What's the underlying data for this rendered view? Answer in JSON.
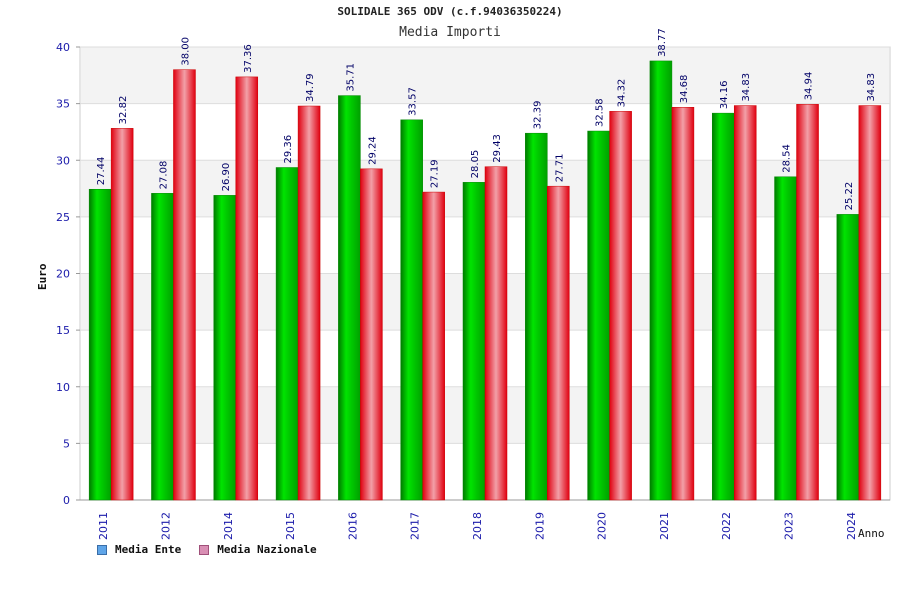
{
  "chart_title": "SOLIDALE 365 ODV (c.f.94036350224)",
  "chart_subtitle": "Media Importi",
  "chart_data": {
    "type": "bar",
    "title": "Media Importi",
    "xlabel": "Anno",
    "ylabel": "Euro",
    "ylim": [
      0,
      40
    ],
    "yticks": [
      0,
      5,
      10,
      15,
      20,
      25,
      30,
      35,
      40
    ],
    "grid": true,
    "legend_position": "bottom-left",
    "categories": [
      "2011",
      "2012",
      "2014",
      "2015",
      "2016",
      "2017",
      "2018",
      "2019",
      "2020",
      "2021",
      "2022",
      "2023",
      "2024"
    ],
    "series": [
      {
        "name": "Media Ente",
        "color": "#00cc00",
        "legend_color": "#5fa5e8",
        "values": [
          27.44,
          27.08,
          26.9,
          29.36,
          35.71,
          33.57,
          28.05,
          32.39,
          32.58,
          38.77,
          34.16,
          28.54,
          25.22
        ],
        "labels": [
          "27.44",
          "27.08",
          "26.90",
          "29.36",
          "35.71",
          "33.57",
          "28.05",
          "32.39",
          "32.58",
          "38.77",
          "34.16",
          "28.54",
          "25.22"
        ]
      },
      {
        "name": "Media Nazionale",
        "color": "#ee1111",
        "legend_color": "#d98fb4",
        "values": [
          32.82,
          38.0,
          37.36,
          34.79,
          29.24,
          27.19,
          29.43,
          27.71,
          34.32,
          34.68,
          34.83,
          34.94,
          34.83
        ],
        "labels": [
          "32.82",
          "38.00",
          "37.36",
          "34.79",
          "29.24",
          "27.19",
          "29.43",
          "27.71",
          "34.32",
          "34.68",
          "34.83",
          "34.94",
          "34.83"
        ]
      }
    ]
  }
}
